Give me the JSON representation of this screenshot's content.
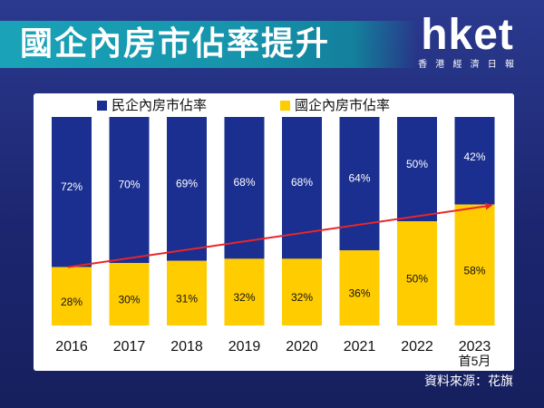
{
  "header": {
    "title": "國企內房市佔率提升",
    "logo_text": "hket",
    "logo_subtitle": "香 港 經 濟 日 報"
  },
  "source": "資料來源：花旗",
  "colors": {
    "private": "#1a2f8f",
    "soe": "#ffcc00",
    "trend_arrow": "#e8262a"
  },
  "chart_data": {
    "type": "bar",
    "stacked": true,
    "percent_stacked": true,
    "categories": [
      "2016",
      "2017",
      "2018",
      "2019",
      "2020",
      "2021",
      "2022",
      "2023"
    ],
    "category_sublabels": [
      "",
      "",
      "",
      "",
      "",
      "",
      "",
      "首5月"
    ],
    "series": [
      {
        "name": "國企內房市佔率",
        "values": [
          28,
          30,
          31,
          32,
          32,
          36,
          50,
          58
        ]
      },
      {
        "name": "民企內房市佔率",
        "values": [
          72,
          70,
          69,
          68,
          68,
          64,
          50,
          42
        ]
      }
    ],
    "value_suffix": "%",
    "ylim": [
      0,
      100
    ],
    "legend_position": "top-left",
    "trend_arrow": true,
    "grid": false
  }
}
